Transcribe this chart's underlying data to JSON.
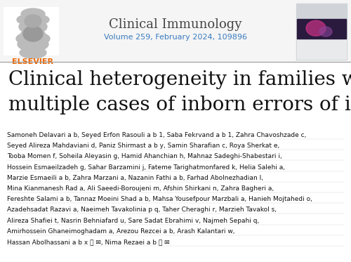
{
  "bg_color": "#ffffff",
  "journal_name": "Clinical Immunology",
  "journal_volume": "Volume 259, February 2024, 109896",
  "journal_name_color": "#444444",
  "journal_volume_color": "#3a7bbf",
  "title_line1": "Clinical heterogeneity in families with",
  "title_line2": "multiple cases of inborn errors of immunity",
  "title_color": "#111111",
  "title_fontsize": 20,
  "author_lines": [
    "Samoneh Delavari a b, Seyed Erfon Rasouli a b 1, Saba Fekrvand a b 1, Zahra Chavoshzade c,",
    "Seyed Alireza Mahdaviani d, Paniz Shirmast a b y, Samin Sharafian c, Roya Sherkat e,",
    "Tooba Momen f, Soheila Aleyasin g, Hamid Ahanchian h, Mahnaz Sadeghi-Shabestari i,",
    "Hossein Esmaeilzadeh g, Sahar Barzamini j, Fateme Tarighatmonfared k, Helia Salehi a,",
    "Marzie Esmaeili a b, Zahra Marzani a, Nazanin Fathi a b, Farhad Abolnezhadian l,",
    "Mina Kianmanesh Rad a, Ali Saeedi-Boroujeni m, Afshin Shirkani n, Zahra Bagheri a,",
    "Fereshte Salami a b, Tannaz Moeini Shad a b, Mahsa Yousefpour Marzbali a, Hanieh Mojtahedi o,",
    "Azadehsadat Razavi a, Naeimeh Tavakolinia p q, Taher Cheraghi r, Marzieh Tavakol s,",
    "Alireza Shafiei t, Nasrin Behniafard u, Sare Sadat Ebrahimi v, Najmeh Sepahi q,",
    "Amirhossein Ghaneimoghadam a, Arezou Rezcei a b, Arash Kalantari w,",
    "Hassan Abolhassani a b x ⨉ ✉, Nima Rezaei a b ⨉ ✉"
  ],
  "author_fontsize": 6.5,
  "author_color": "#111111",
  "elsevier_orange": "#ee6600",
  "separator_color": "#999999",
  "header_bg": "#f5f5f5",
  "cover_bg": "#c8ccd0",
  "cover_title_bg": "#6a8a9a",
  "cover_pink": "#cc4488"
}
